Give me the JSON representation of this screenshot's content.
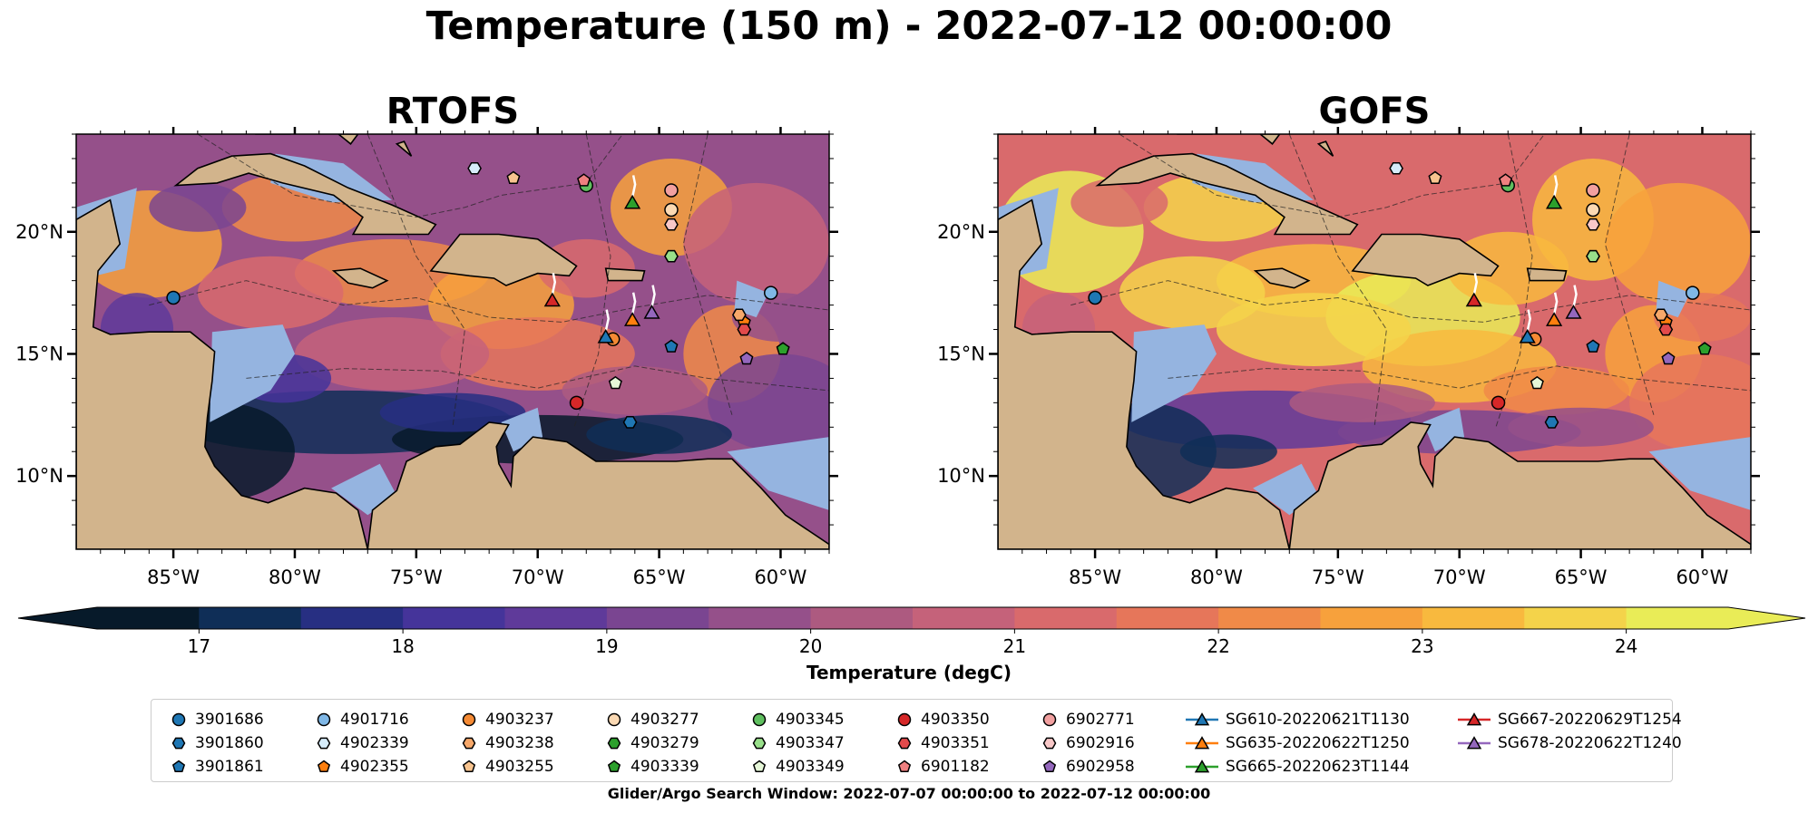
{
  "title": "Temperature (150 m) - 2022-07-12 00:00:00",
  "search_window": "Glider/Argo Search Window: 2022-07-07 00:00:00 to 2022-07-12 00:00:00",
  "colors": {
    "land": "#d2b48c",
    "shelf": "#95b4e0",
    "colormap": [
      "#071a2a",
      "#0f2e57",
      "#272f82",
      "#45349a",
      "#5f3a9a",
      "#7a4591",
      "#95508a",
      "#ad5a80",
      "#c5627a",
      "#d96a6c",
      "#e6765a",
      "#f08a48",
      "#f7a13c",
      "#f8b93e",
      "#f4d34a",
      "#e9ec57"
    ]
  },
  "chart_data": [
    {
      "type": "map",
      "title": "RTOFS",
      "xlim": [
        -89,
        -58
      ],
      "ylim": [
        7,
        24
      ],
      "xticks": [
        "85°W",
        "80°W",
        "75°W",
        "70°W",
        "65°W",
        "60°W"
      ],
      "yticks": [
        "10°N",
        "15°N",
        "20°N"
      ],
      "field_unit": "degC"
    },
    {
      "type": "map",
      "title": "GOFS",
      "xlim": [
        -89,
        -58
      ],
      "ylim": [
        7,
        24
      ],
      "xticks": [
        "85°W",
        "80°W",
        "75°W",
        "70°W",
        "65°W",
        "60°W"
      ],
      "yticks": [
        "10°N",
        "15°N",
        "20°N"
      ],
      "field_unit": "degC"
    }
  ],
  "colorbar": {
    "label": "Temperature (degC)",
    "min": 16.5,
    "max": 24.5,
    "extend": "both",
    "ticks": [
      "17",
      "18",
      "19",
      "20",
      "21",
      "22",
      "23",
      "24"
    ],
    "tick_values": [
      17,
      18,
      19,
      20,
      21,
      22,
      23,
      24
    ]
  },
  "platforms": [
    {
      "name": "3901686",
      "marker": "circle",
      "color": "#1f77b4",
      "lon": -85.0,
      "lat": 17.3
    },
    {
      "name": "3901860",
      "marker": "hexagon",
      "color": "#1f77b4",
      "lon": -66.2,
      "lat": 12.2
    },
    {
      "name": "3901861",
      "marker": "pentagon",
      "color": "#1f77b4",
      "lon": -64.5,
      "lat": 15.3
    },
    {
      "name": "4901716",
      "marker": "circle",
      "color": "#7fb7e6",
      "lon": -60.4,
      "lat": 17.5
    },
    {
      "name": "4902339",
      "marker": "hexagon",
      "color": "#d6ecfa",
      "lon": -72.6,
      "lat": 22.6
    },
    {
      "name": "4902355",
      "marker": "pentagon",
      "color": "#ff7f0e",
      "lon": -61.5,
      "lat": 16.3
    },
    {
      "name": "4903237",
      "marker": "circle",
      "color": "#f58a34",
      "lon": -66.9,
      "lat": 15.6
    },
    {
      "name": "4903238",
      "marker": "hexagon",
      "color": "#f7a86a",
      "lon": -61.7,
      "lat": 16.6
    },
    {
      "name": "4903255",
      "marker": "pentagon",
      "color": "#f8c48f",
      "lon": -71.0,
      "lat": 22.2
    },
    {
      "name": "4903277",
      "marker": "circle",
      "color": "#fbd9b3",
      "lon": -64.5,
      "lat": 20.9
    },
    {
      "name": "4903279",
      "marker": "hexagon",
      "color": "#2ca02c",
      "lon": -64.5,
      "lat": 19.0
    },
    {
      "name": "4903339",
      "marker": "pentagon",
      "color": "#2ca02c",
      "lon": -59.9,
      "lat": 15.2
    },
    {
      "name": "4903345",
      "marker": "circle",
      "color": "#5fbf5f",
      "lon": -68.0,
      "lat": 21.9
    },
    {
      "name": "4903347",
      "marker": "hexagon",
      "color": "#98df8a",
      "lon": -64.5,
      "lat": 19.0
    },
    {
      "name": "4903349",
      "marker": "pentagon",
      "color": "#e6f7d8",
      "lon": -66.8,
      "lat": 13.8
    },
    {
      "name": "4903350",
      "marker": "circle",
      "color": "#d62728",
      "lon": -68.4,
      "lat": 13.0
    },
    {
      "name": "4903351",
      "marker": "hexagon",
      "color": "#e24a4b",
      "lon": -61.5,
      "lat": 16.0
    },
    {
      "name": "6901182",
      "marker": "pentagon",
      "color": "#ef8080",
      "lon": -68.1,
      "lat": 22.1
    },
    {
      "name": "6902771",
      "marker": "circle",
      "color": "#f2a0a0",
      "lon": -64.5,
      "lat": 21.7
    },
    {
      "name": "6902916",
      "marker": "hexagon",
      "color": "#f8c8c8",
      "lon": -64.5,
      "lat": 20.3
    },
    {
      "name": "6902958",
      "marker": "pentagon",
      "color": "#9467bd",
      "lon": -61.4,
      "lat": 14.8
    },
    {
      "name": "SG610-20220621T1130",
      "marker": "triangle",
      "color": "#1f77b4",
      "lon": -67.2,
      "lat": 15.7,
      "line": true
    },
    {
      "name": "SG635-20220622T1250",
      "marker": "triangle",
      "color": "#ff7f0e",
      "lon": -66.1,
      "lat": 16.4,
      "line": true
    },
    {
      "name": "SG665-20220623T1144",
      "marker": "triangle",
      "color": "#2ca02c",
      "lon": -66.1,
      "lat": 21.2,
      "line": true
    },
    {
      "name": "SG667-20220629T1254",
      "marker": "triangle",
      "color": "#d62728",
      "lon": -69.4,
      "lat": 17.2,
      "line": true
    },
    {
      "name": "SG678-20220622T1240",
      "marker": "triangle",
      "color": "#9467bd",
      "lon": -65.3,
      "lat": 16.7,
      "line": true
    }
  ]
}
